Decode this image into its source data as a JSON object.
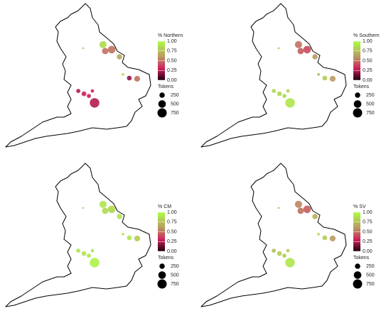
{
  "chart_data": [
    {
      "type": "bubble-map",
      "color_title": "% Northern",
      "size_title": "Tokens",
      "x": [
        -0.45,
        -0.01,
        -0.34,
        0.39,
        0.89,
        1.29,
        -0.88,
        -1.42,
        -1.71,
        -1.17,
        -0.99,
        -1.46,
        0.57
      ],
      "y": [
        53.93,
        53.72,
        53.66,
        53.42,
        52.53,
        52.5,
        51.49,
        51.87,
        51.99,
        51.78,
        51.99,
        53.78,
        52.68
      ],
      "values": [
        0.85,
        0.5,
        0.5,
        0.65,
        0.2,
        0.5,
        0.25,
        0.3,
        0.25,
        0.3,
        0.3,
        0.75,
        0.9
      ],
      "sizes": [
        450,
        500,
        350,
        250,
        200,
        300,
        800,
        200,
        150,
        150,
        100,
        30,
        60
      ],
      "color_stops": [
        0,
        0.3,
        0.6,
        1
      ],
      "colors": [
        "#1a0010",
        "#d0205a",
        "#b89a60",
        "#aaff44"
      ],
      "cticks": [
        {
          "value": 0,
          "label": "0.00"
        },
        {
          "value": 0.25,
          "label": "0.25"
        },
        {
          "value": 0.5,
          "label": "0.50"
        },
        {
          "value": 0.75,
          "label": "0.75"
        },
        {
          "value": 1,
          "label": "1.00"
        }
      ],
      "sticks": [
        250,
        500,
        750
      ]
    },
    {
      "type": "bubble-map",
      "color_title": "% Southern",
      "size_title": "Tokens",
      "x": [
        -0.45,
        -0.01,
        -0.34,
        0.39,
        0.89,
        1.29,
        -0.88,
        -1.42,
        -1.71,
        -1.17,
        -0.99,
        -1.46,
        0.57
      ],
      "y": [
        53.93,
        53.72,
        53.66,
        53.42,
        52.53,
        52.5,
        51.49,
        51.87,
        51.99,
        51.78,
        51.99,
        53.78,
        52.68
      ],
      "values": [
        0.5,
        0.4,
        0.45,
        0.6,
        0.8,
        0.6,
        0.9,
        0.85,
        0.85,
        0.85,
        0.8,
        0.7,
        0.7
      ],
      "sizes": [
        450,
        500,
        350,
        250,
        200,
        300,
        800,
        200,
        150,
        150,
        100,
        30,
        60
      ],
      "color_stops": [
        0,
        0.3,
        0.6,
        1
      ],
      "colors": [
        "#1a0010",
        "#d0205a",
        "#b89a60",
        "#aaff44"
      ],
      "cticks": [
        {
          "value": 0,
          "label": "0.00"
        },
        {
          "value": 0.25,
          "label": "0.25"
        },
        {
          "value": 0.5,
          "label": "0.50"
        },
        {
          "value": 0.75,
          "label": "0.75"
        },
        {
          "value": 1,
          "label": "1.00"
        }
      ],
      "sticks": [
        250,
        500,
        750
      ]
    },
    {
      "type": "bubble-map",
      "color_title": "% CM",
      "size_title": "Tokens",
      "x": [
        -0.45,
        -0.01,
        -0.34,
        0.39,
        0.89,
        1.29,
        -0.88,
        -1.42,
        -1.71,
        -1.17,
        -0.99,
        -1.46,
        0.57
      ],
      "y": [
        53.93,
        53.72,
        53.66,
        53.42,
        52.53,
        52.5,
        51.49,
        51.87,
        51.99,
        51.78,
        51.99,
        53.78,
        52.68
      ],
      "values": [
        0.9,
        0.85,
        0.85,
        0.9,
        0.9,
        0.8,
        0.95,
        0.9,
        0.9,
        0.9,
        0.9,
        0.8,
        0.9
      ],
      "sizes": [
        450,
        500,
        350,
        250,
        200,
        300,
        800,
        200,
        150,
        150,
        100,
        30,
        60
      ],
      "color_stops": [
        0,
        0.3,
        0.6,
        1
      ],
      "colors": [
        "#1a0010",
        "#d0205a",
        "#b89a60",
        "#aaff44"
      ],
      "cticks": [
        {
          "value": 0,
          "label": "0.00"
        },
        {
          "value": 0.25,
          "label": "0.25"
        },
        {
          "value": 0.5,
          "label": "0.50"
        },
        {
          "value": 0.75,
          "label": "0.75"
        },
        {
          "value": 1,
          "label": "1.00"
        }
      ],
      "sticks": [
        250,
        500,
        750
      ]
    },
    {
      "type": "bubble-map",
      "color_title": "% SV",
      "size_title": "Tokens",
      "x": [
        -0.45,
        -0.01,
        -0.34,
        0.39,
        0.89,
        1.29,
        -0.88,
        -1.42,
        -1.71,
        -1.17,
        -0.99,
        -1.46,
        0.57
      ],
      "y": [
        53.93,
        53.72,
        53.66,
        53.42,
        52.53,
        52.5,
        51.49,
        51.87,
        51.99,
        51.78,
        51.99,
        53.78,
        52.68
      ],
      "values": [
        0.55,
        0.45,
        0.5,
        0.7,
        0.8,
        0.6,
        0.9,
        0.8,
        0.75,
        0.8,
        0.8,
        0.7,
        0.85
      ],
      "sizes": [
        450,
        500,
        350,
        250,
        200,
        300,
        800,
        200,
        150,
        150,
        100,
        30,
        60
      ],
      "color_stops": [
        0,
        0.3,
        0.6,
        1
      ],
      "colors": [
        "#1a0010",
        "#d0205a",
        "#b89a60",
        "#aaff44"
      ],
      "cticks": [
        {
          "value": 0,
          "label": "0.00"
        },
        {
          "value": 0.25,
          "label": "0.25"
        },
        {
          "value": 0.5,
          "label": "0.50"
        },
        {
          "value": 0.75,
          "label": "0.75"
        },
        {
          "value": 1,
          "label": "1.00"
        }
      ],
      "sticks": [
        250,
        500,
        750
      ]
    }
  ]
}
